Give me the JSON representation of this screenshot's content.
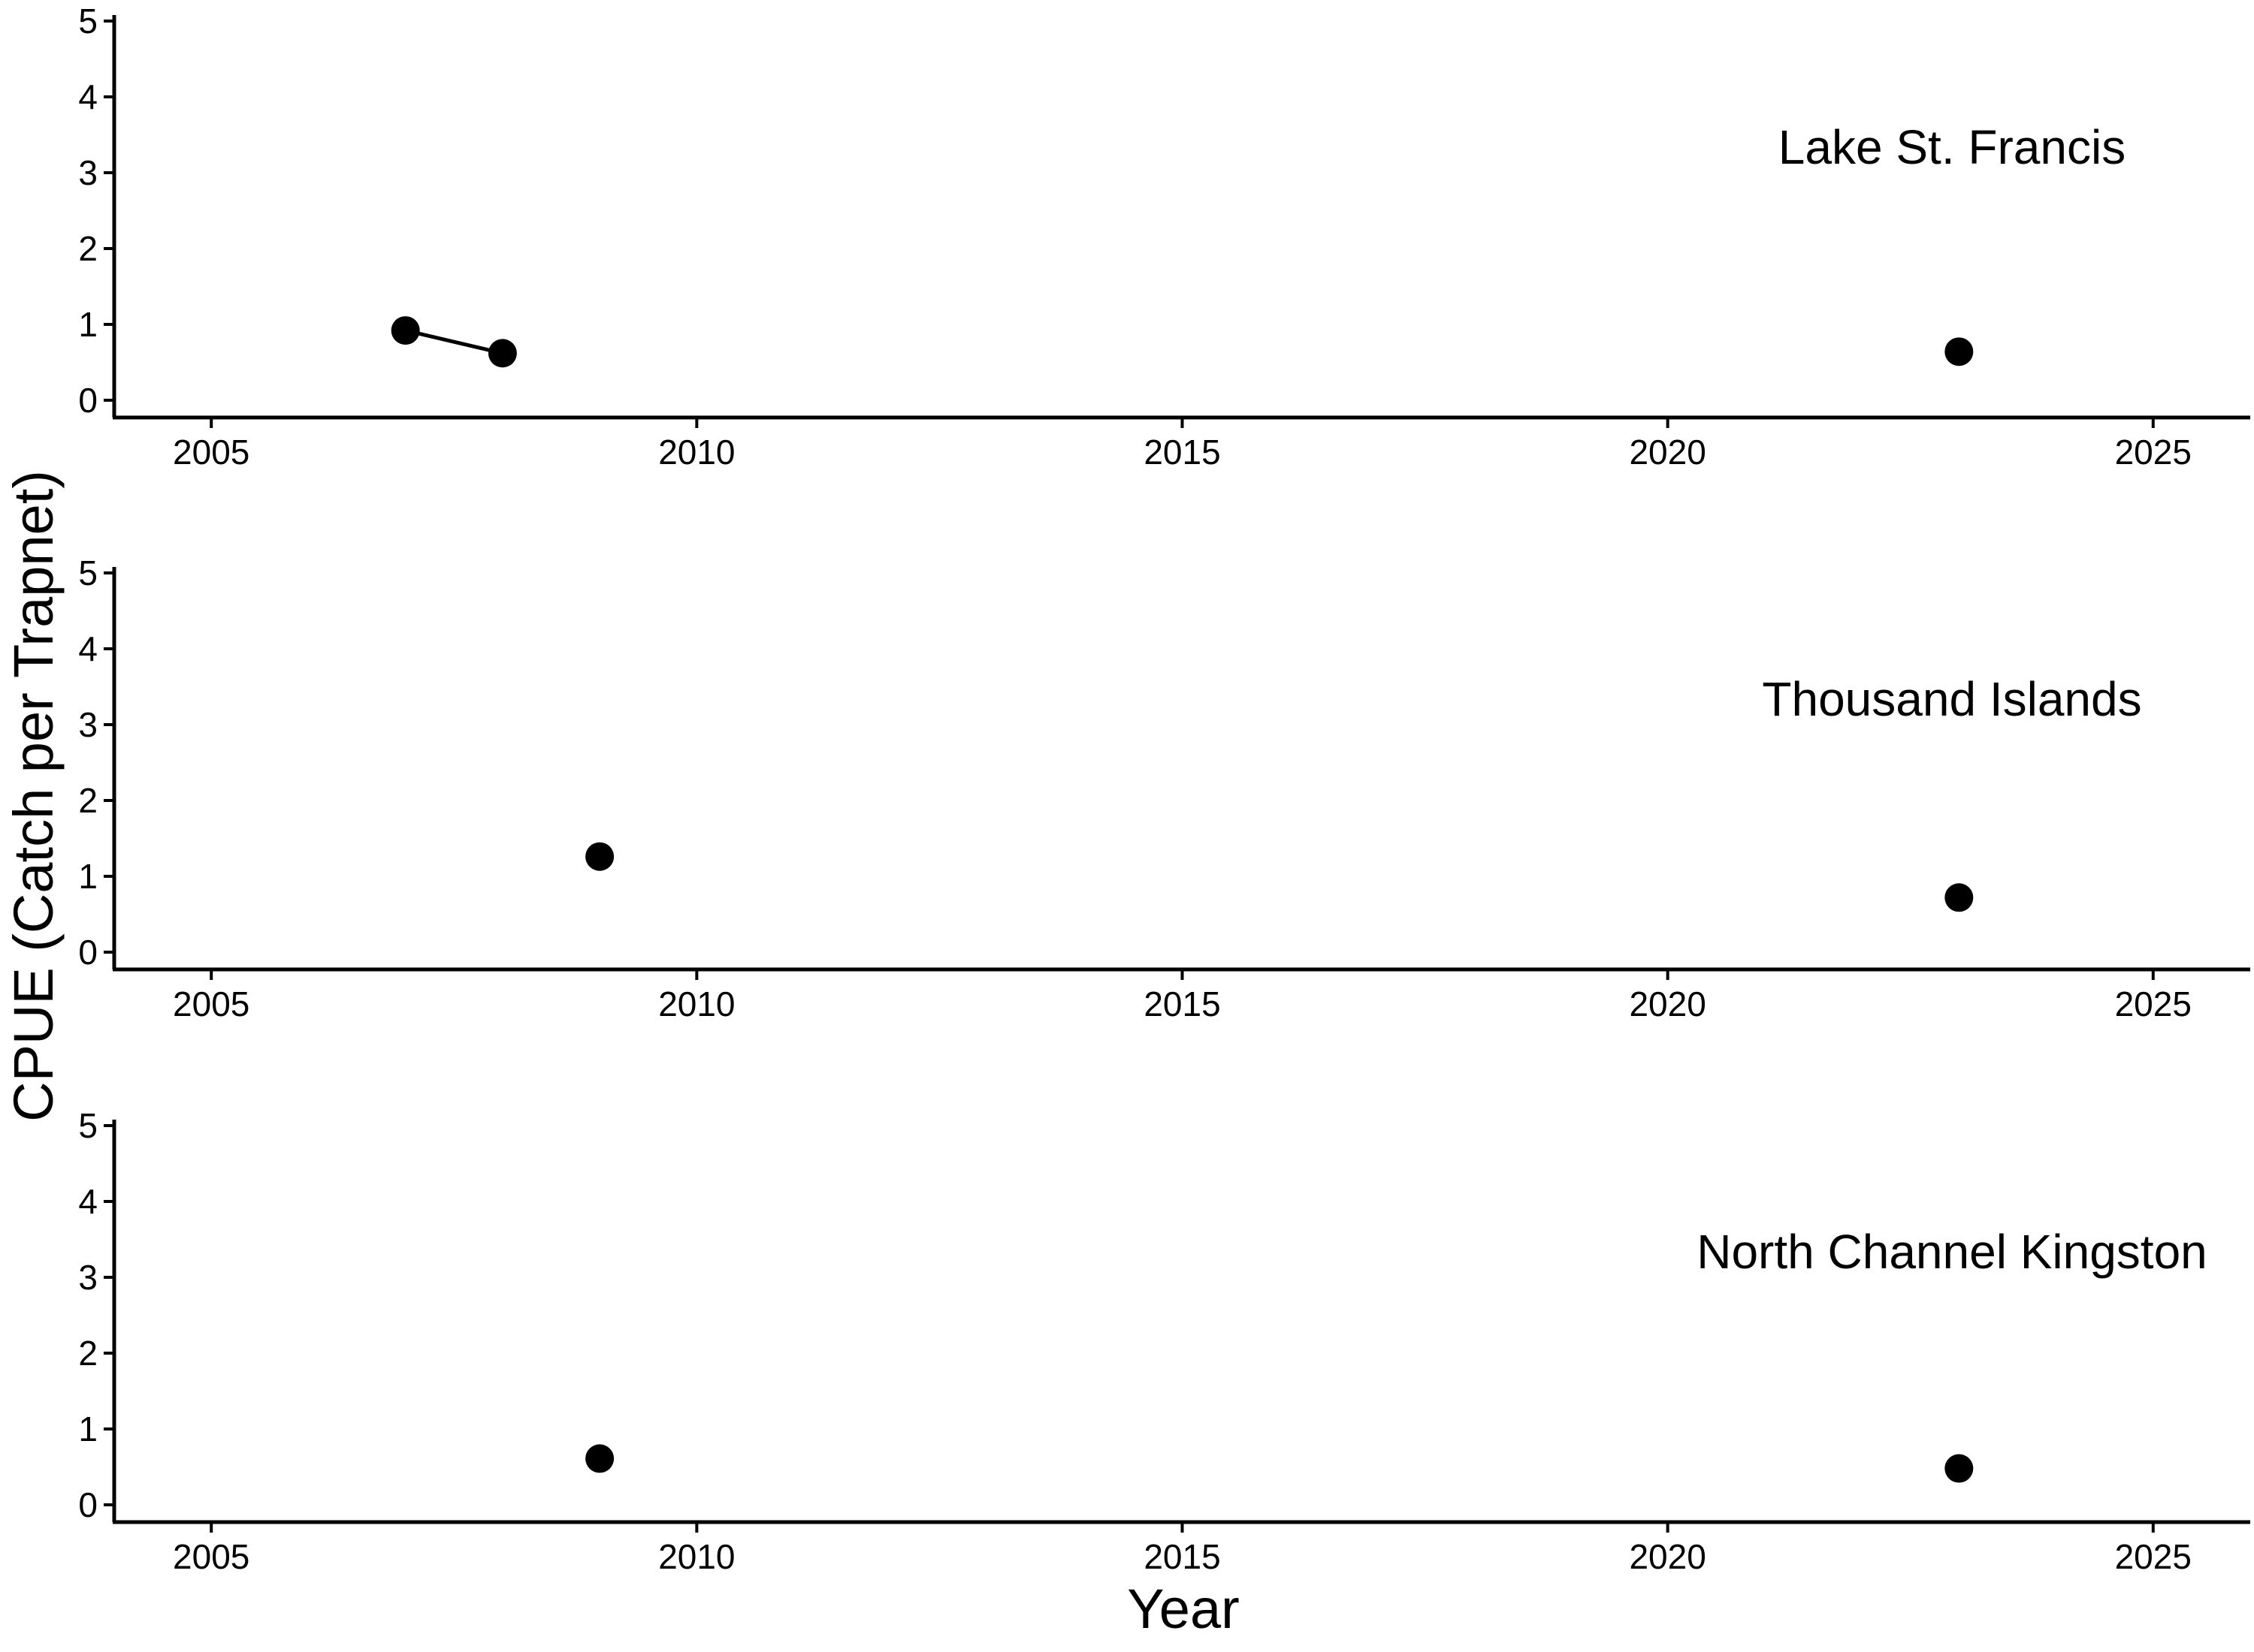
{
  "chart_data": {
    "type": "scatter",
    "xlabel": "Year",
    "ylabel": "CPUE (Catch per Trapnet)",
    "xlim": [
      2004,
      2026
    ],
    "ylim": [
      0,
      5
    ],
    "xticks": [
      2005,
      2010,
      2015,
      2020,
      2025
    ],
    "yticks": [
      0,
      1,
      2,
      3,
      4,
      5
    ],
    "grid": false,
    "legend": "none",
    "marker_color": "#000000",
    "panels": [
      {
        "label": "Lake St. Francis",
        "points": [
          {
            "x": 2007,
            "y": 0.92
          },
          {
            "x": 2008,
            "y": 0.62
          },
          {
            "x": 2023,
            "y": 0.64
          }
        ],
        "lines": [
          [
            0,
            1
          ]
        ]
      },
      {
        "label": "Thousand Islands",
        "points": [
          {
            "x": 2009,
            "y": 1.26
          },
          {
            "x": 2023,
            "y": 0.72
          }
        ],
        "lines": []
      },
      {
        "label": "North Channel Kingston",
        "points": [
          {
            "x": 2009,
            "y": 0.61
          },
          {
            "x": 2023,
            "y": 0.48
          }
        ],
        "lines": []
      }
    ]
  }
}
